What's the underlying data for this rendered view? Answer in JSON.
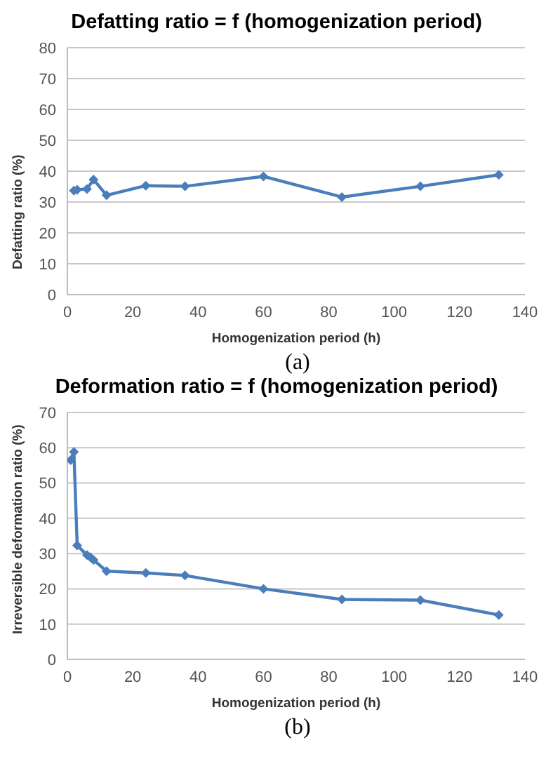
{
  "chart_data": [
    {
      "type": "line",
      "title": "Defatting ratio = f (homogenization period)",
      "xlabel": "Homogenization period (h)",
      "ylabel": "Defatting ratio (%)",
      "annotations": [
        "(a)"
      ],
      "series": [
        {
          "color": "#4a7ebb",
          "x": [
            2,
            3,
            6,
            8,
            12,
            24,
            36,
            60,
            84,
            108,
            132
          ],
          "values": [
            33.7,
            34,
            34.2,
            37.3,
            32.2,
            35.3,
            35.1,
            38.3,
            31.6,
            35.1,
            38.8
          ]
        }
      ],
      "xlim": [
        0,
        140
      ],
      "xticks": [
        0,
        20,
        40,
        60,
        80,
        100,
        120,
        140
      ],
      "ylim": [
        0,
        80
      ],
      "yticks": [
        0,
        10,
        20,
        30,
        40,
        50,
        60,
        70,
        80
      ],
      "grid": "y",
      "marker": "diamond",
      "line_style": "solid",
      "legend": false
    },
    {
      "type": "line",
      "title": "Deformation ratio = f (homogenization period)",
      "xlabel": "Homogenization period (h)",
      "ylabel": "Irreversible deformation ratio (%)",
      "annotations": [
        "(b)"
      ],
      "series": [
        {
          "color": "#4a7ebb",
          "x": [
            1,
            2,
            3,
            6,
            7,
            8,
            12,
            24,
            36,
            60,
            84,
            108,
            132
          ],
          "values": [
            56.5,
            58.8,
            32.3,
            29.6,
            29,
            28.2,
            25,
            24.5,
            23.8,
            20,
            17,
            16.8,
            12.6
          ]
        }
      ],
      "xlim": [
        0,
        140
      ],
      "xticks": [
        0,
        20,
        40,
        60,
        80,
        100,
        120,
        140
      ],
      "ylim": [
        0,
        70
      ],
      "yticks": [
        0,
        10,
        20,
        30,
        40,
        50,
        60,
        70
      ],
      "grid": "y",
      "marker": "diamond",
      "line_style": "solid",
      "legend": false
    }
  ]
}
